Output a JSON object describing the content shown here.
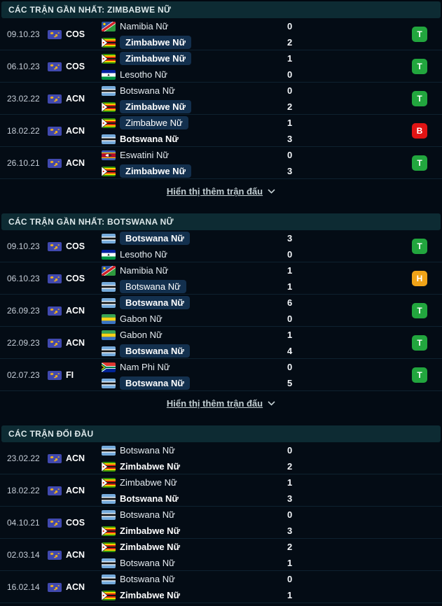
{
  "result_colors": {
    "T": "#22a63e",
    "B": "#e11414",
    "H": "#f0a318"
  },
  "icons": {
    "competition_icon": "world-map-badge",
    "show_more_chevron": "chevron-down"
  },
  "sections": [
    {
      "title": "CÁC TRẬN GẦN NHẤT: ZIMBABWE NỮ",
      "show_more": "Hiển thị thêm trận đấu",
      "matches": [
        {
          "date": "09.10.23",
          "comp": "COS",
          "home": {
            "name": "Namibia Nữ",
            "flag": "namibia",
            "pill": false,
            "bold": false,
            "score": 0
          },
          "away": {
            "name": "Zimbabwe Nữ",
            "flag": "zimbabwe",
            "pill": true,
            "bold": true,
            "score": 2
          },
          "result": "T"
        },
        {
          "date": "06.10.23",
          "comp": "COS",
          "home": {
            "name": "Zimbabwe Nữ",
            "flag": "zimbabwe",
            "pill": true,
            "bold": true,
            "score": 1
          },
          "away": {
            "name": "Lesotho Nữ",
            "flag": "lesotho",
            "pill": false,
            "bold": false,
            "score": 0
          },
          "result": "T"
        },
        {
          "date": "23.02.22",
          "comp": "ACN",
          "home": {
            "name": "Botswana Nữ",
            "flag": "botswana",
            "pill": false,
            "bold": false,
            "score": 0
          },
          "away": {
            "name": "Zimbabwe Nữ",
            "flag": "zimbabwe",
            "pill": true,
            "bold": true,
            "score": 2
          },
          "result": "T"
        },
        {
          "date": "18.02.22",
          "comp": "ACN",
          "home": {
            "name": "Zimbabwe Nữ",
            "flag": "zimbabwe",
            "pill": true,
            "bold": false,
            "score": 1
          },
          "away": {
            "name": "Botswana Nữ",
            "flag": "botswana",
            "pill": false,
            "bold": true,
            "score": 3
          },
          "result": "B"
        },
        {
          "date": "26.10.21",
          "comp": "ACN",
          "home": {
            "name": "Eswatini Nữ",
            "flag": "eswatini",
            "pill": false,
            "bold": false,
            "score": 0
          },
          "away": {
            "name": "Zimbabwe Nữ",
            "flag": "zimbabwe",
            "pill": true,
            "bold": true,
            "score": 3
          },
          "result": "T"
        }
      ]
    },
    {
      "title": "CÁC TRẬN GẦN NHẤT: BOTSWANA NỮ",
      "show_more": "Hiển thị thêm trận đấu",
      "matches": [
        {
          "date": "09.10.23",
          "comp": "COS",
          "home": {
            "name": "Botswana Nữ",
            "flag": "botswana",
            "pill": true,
            "bold": true,
            "score": 3
          },
          "away": {
            "name": "Lesotho Nữ",
            "flag": "lesotho",
            "pill": false,
            "bold": false,
            "score": 0
          },
          "result": "T"
        },
        {
          "date": "06.10.23",
          "comp": "COS",
          "home": {
            "name": "Namibia Nữ",
            "flag": "namibia",
            "pill": false,
            "bold": false,
            "score": 1
          },
          "away": {
            "name": "Botswana Nữ",
            "flag": "botswana",
            "pill": true,
            "bold": false,
            "score": 1
          },
          "result": "H"
        },
        {
          "date": "26.09.23",
          "comp": "ACN",
          "home": {
            "name": "Botswana Nữ",
            "flag": "botswana",
            "pill": true,
            "bold": true,
            "score": 6
          },
          "away": {
            "name": "Gabon Nữ",
            "flag": "gabon",
            "pill": false,
            "bold": false,
            "score": 0
          },
          "result": "T"
        },
        {
          "date": "22.09.23",
          "comp": "ACN",
          "home": {
            "name": "Gabon Nữ",
            "flag": "gabon",
            "pill": false,
            "bold": false,
            "score": 1
          },
          "away": {
            "name": "Botswana Nữ",
            "flag": "botswana",
            "pill": true,
            "bold": true,
            "score": 4
          },
          "result": "T"
        },
        {
          "date": "02.07.23",
          "comp": "FI",
          "home": {
            "name": "Nam Phi Nữ",
            "flag": "south-africa",
            "pill": false,
            "bold": false,
            "score": 0
          },
          "away": {
            "name": "Botswana Nữ",
            "flag": "botswana",
            "pill": true,
            "bold": true,
            "score": 5
          },
          "result": "T"
        }
      ]
    },
    {
      "title": "CÁC TRẬN ĐỐI ĐẦU",
      "show_more": null,
      "matches": [
        {
          "date": "23.02.22",
          "comp": "ACN",
          "home": {
            "name": "Botswana Nữ",
            "flag": "botswana",
            "pill": false,
            "bold": false,
            "score": 0
          },
          "away": {
            "name": "Zimbabwe Nữ",
            "flag": "zimbabwe",
            "pill": false,
            "bold": true,
            "score": 2
          },
          "result": null
        },
        {
          "date": "18.02.22",
          "comp": "ACN",
          "home": {
            "name": "Zimbabwe Nữ",
            "flag": "zimbabwe",
            "pill": false,
            "bold": false,
            "score": 1
          },
          "away": {
            "name": "Botswana Nữ",
            "flag": "botswana",
            "pill": false,
            "bold": true,
            "score": 3
          },
          "result": null
        },
        {
          "date": "04.10.21",
          "comp": "COS",
          "home": {
            "name": "Botswana Nữ",
            "flag": "botswana",
            "pill": false,
            "bold": false,
            "score": 0
          },
          "away": {
            "name": "Zimbabwe Nữ",
            "flag": "zimbabwe",
            "pill": false,
            "bold": true,
            "score": 3
          },
          "result": null
        },
        {
          "date": "02.03.14",
          "comp": "ACN",
          "home": {
            "name": "Zimbabwe Nữ",
            "flag": "zimbabwe",
            "pill": false,
            "bold": true,
            "score": 2
          },
          "away": {
            "name": "Botswana Nữ",
            "flag": "botswana",
            "pill": false,
            "bold": false,
            "score": 1
          },
          "result": null
        },
        {
          "date": "16.02.14",
          "comp": "ACN",
          "home": {
            "name": "Botswana Nữ",
            "flag": "botswana",
            "pill": false,
            "bold": false,
            "score": 0
          },
          "away": {
            "name": "Zimbabwe Nữ",
            "flag": "zimbabwe",
            "pill": false,
            "bold": true,
            "score": 1
          },
          "result": null
        }
      ]
    }
  ]
}
